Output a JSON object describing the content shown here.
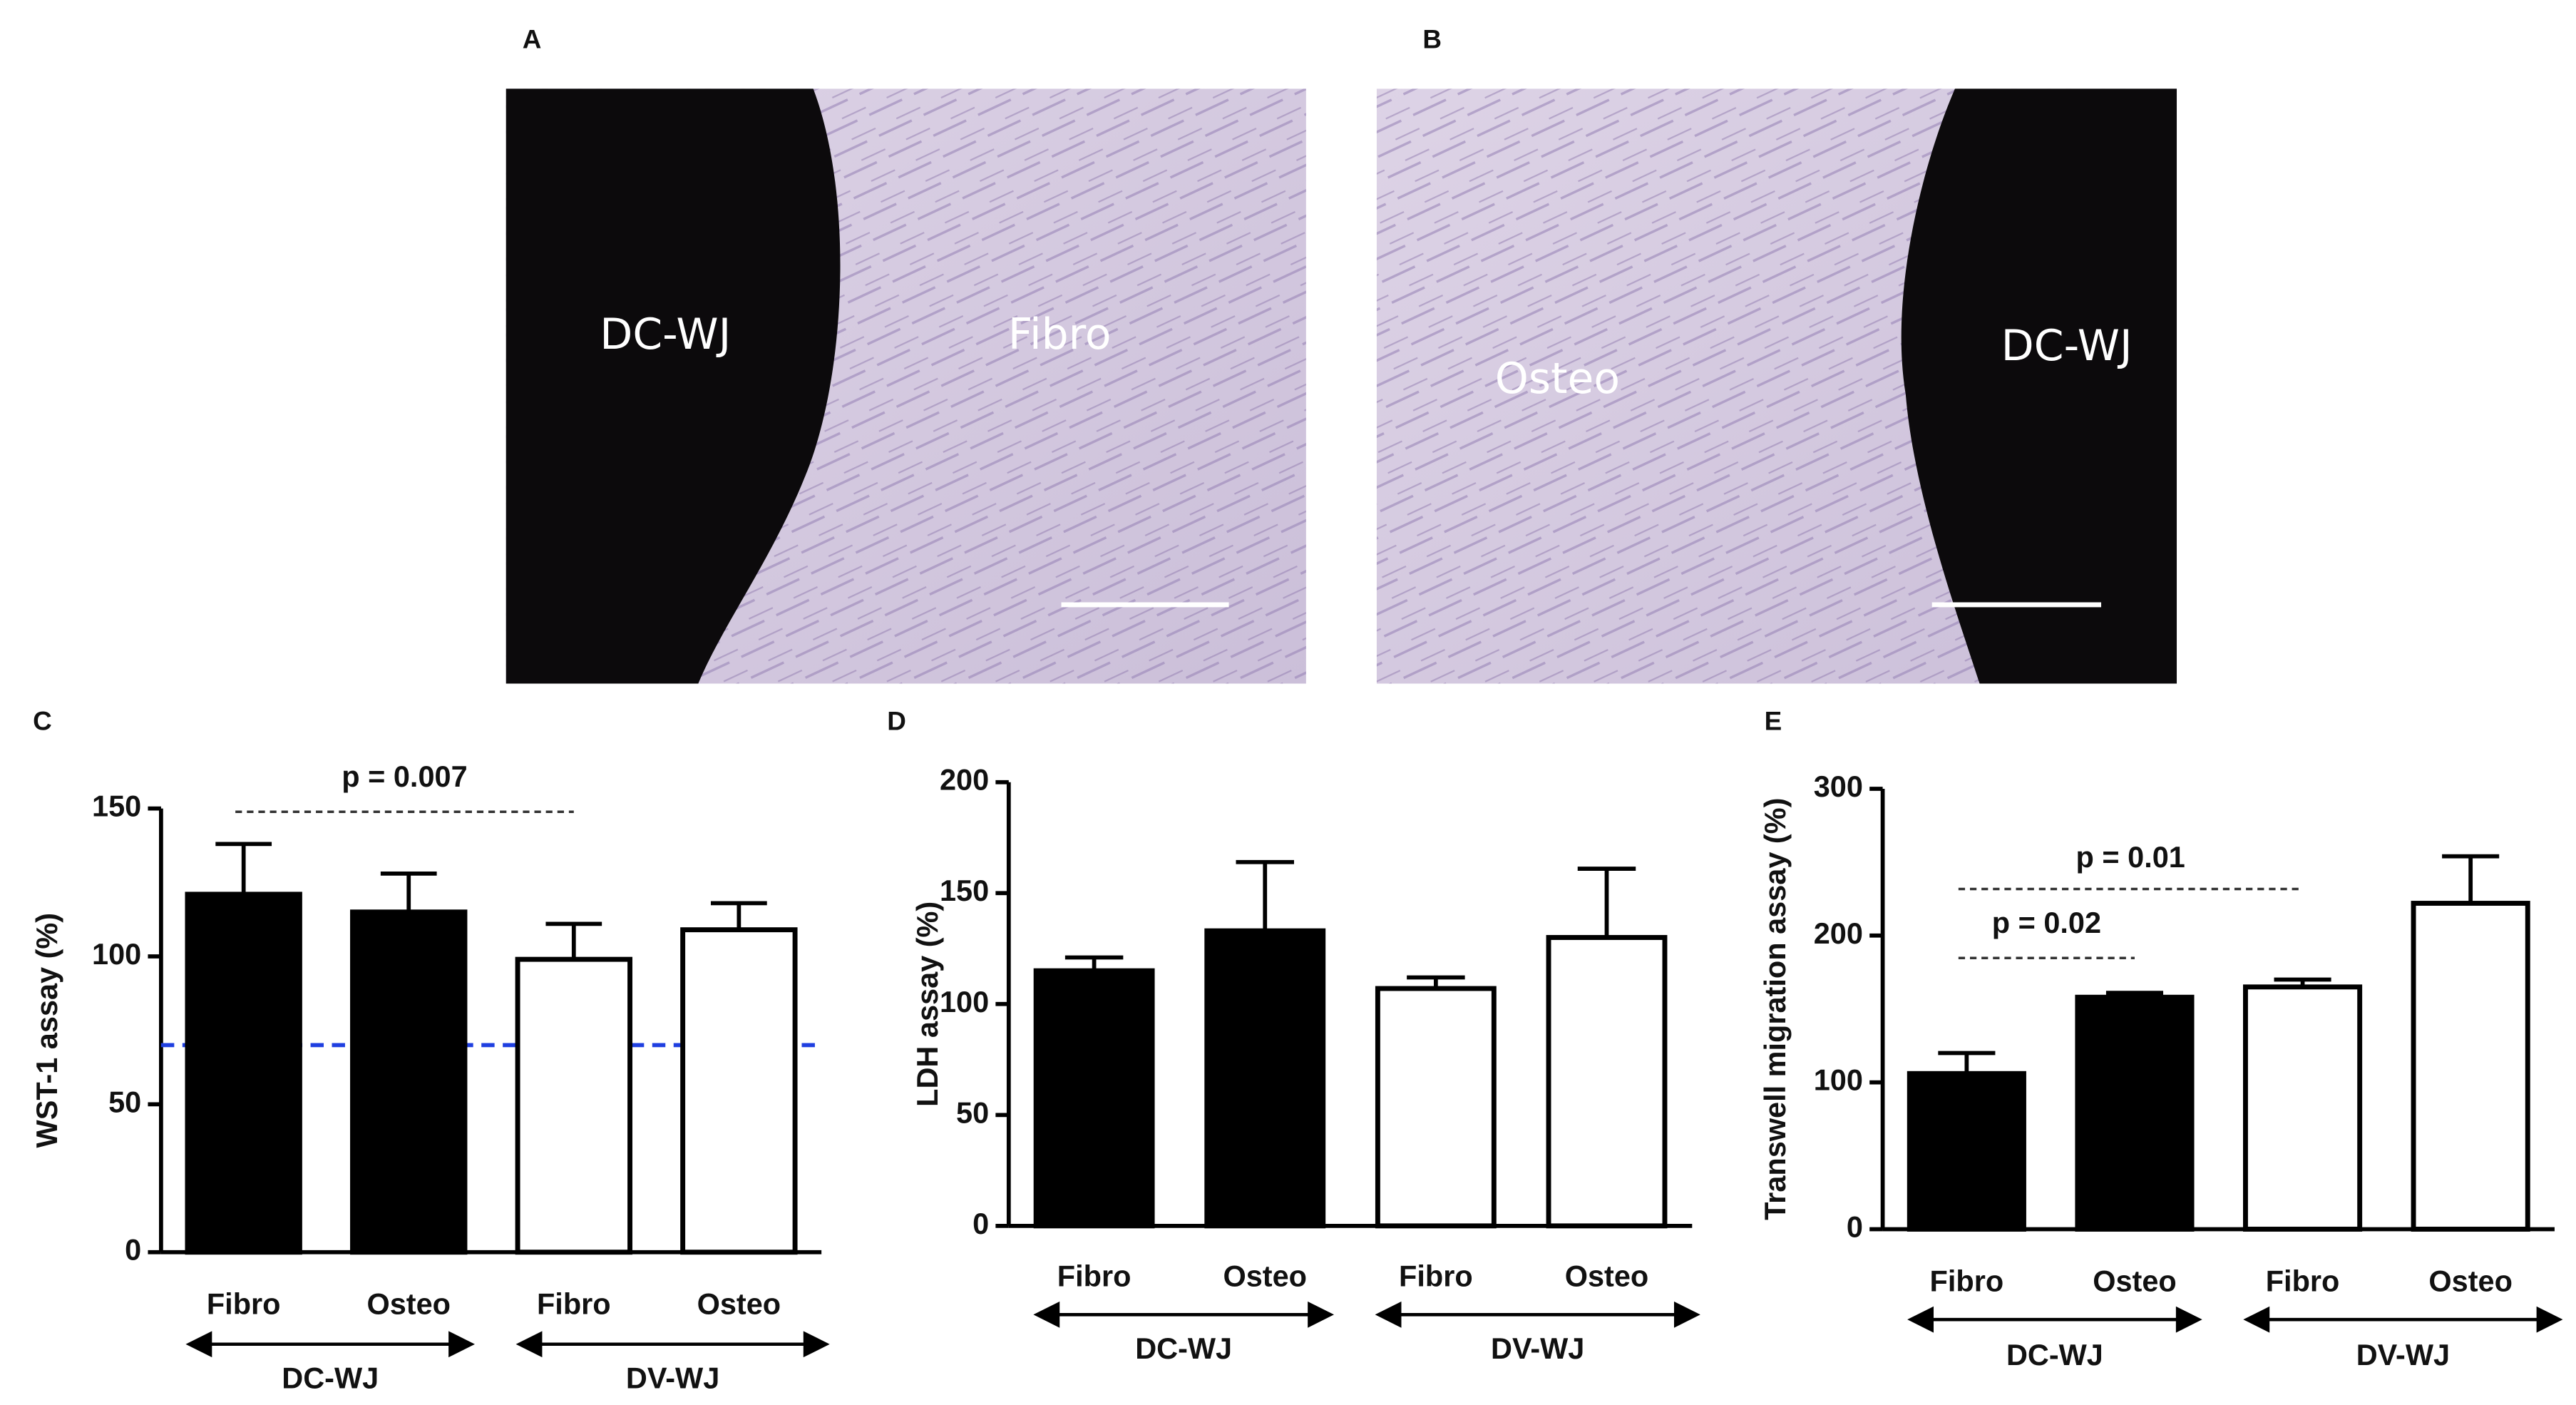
{
  "micrographs": [
    {
      "panel": "A",
      "labels": [
        "DC-WJ",
        "Fibro"
      ]
    },
    {
      "panel": "B",
      "labels": [
        "Osteo",
        "DC-WJ"
      ]
    }
  ],
  "chart_data": [
    {
      "type": "bar",
      "panel": "C",
      "y_label": "WST-1 assay (%)",
      "categories": [
        "Fibro",
        "Osteo",
        "Fibro",
        "Osteo"
      ],
      "groups": [
        "DC-WJ",
        "DV-WJ"
      ],
      "values": [
        121,
        115,
        99,
        109
      ],
      "errors": [
        17,
        13,
        12,
        9
      ],
      "colors": [
        "#000000",
        "#000000",
        "#ffffff",
        "#ffffff"
      ],
      "ylim": [
        0,
        150
      ],
      "yticks": [
        0,
        50,
        100,
        150
      ],
      "reference_line": {
        "value": 70,
        "color": "#1f3fe0"
      },
      "annotations": [
        {
          "text": "p = 0.007",
          "between": [
            0,
            2
          ]
        }
      ]
    },
    {
      "type": "bar",
      "panel": "D",
      "y_label": "LDH assay (%)",
      "categories": [
        "Fibro",
        "Osteo",
        "Fibro",
        "Osteo"
      ],
      "groups": [
        "DC-WJ",
        "DV-WJ"
      ],
      "values": [
        115,
        133,
        107,
        130
      ],
      "errors": [
        6,
        31,
        5,
        31
      ],
      "colors": [
        "#000000",
        "#000000",
        "#ffffff",
        "#ffffff"
      ],
      "ylim": [
        0,
        200
      ],
      "yticks": [
        0,
        50,
        100,
        150,
        200
      ],
      "annotations": []
    },
    {
      "type": "bar",
      "panel": "E",
      "y_label": "Transwell migration assay (%)",
      "categories": [
        "Fibro",
        "Osteo",
        "Fibro",
        "Osteo"
      ],
      "groups": [
        "DC-WJ",
        "DV-WJ"
      ],
      "values": [
        106,
        158,
        165,
        222
      ],
      "errors": [
        14,
        3,
        5,
        32
      ],
      "colors": [
        "#000000",
        "#000000",
        "#ffffff",
        "#ffffff"
      ],
      "ylim": [
        0,
        300
      ],
      "yticks": [
        0,
        100,
        200,
        300
      ],
      "annotations": [
        {
          "text": "p = 0.01",
          "between": [
            0,
            2
          ]
        },
        {
          "text": "p = 0.02",
          "between": [
            0,
            1
          ]
        }
      ]
    }
  ]
}
